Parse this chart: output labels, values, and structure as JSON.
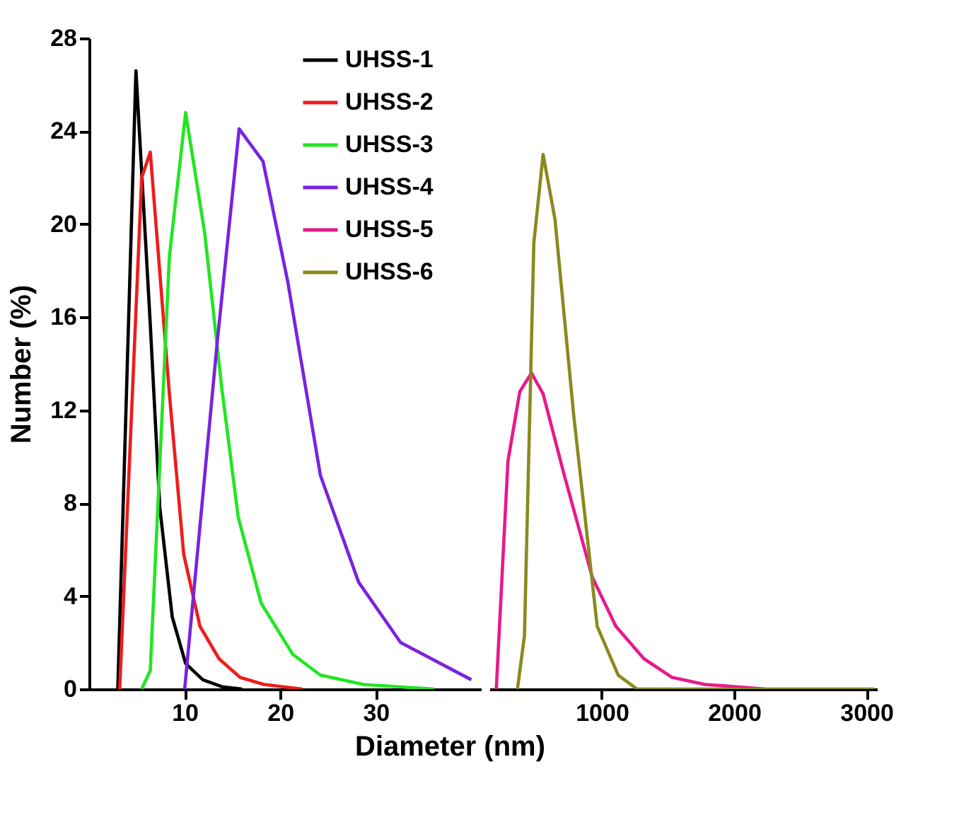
{
  "chart_data": [
    {
      "type": "line",
      "xlabel": "Diameter (nm)",
      "ylabel": "Number (%)",
      "xlim": [
        0,
        41
      ],
      "xticks": [
        10,
        20,
        30
      ],
      "ylim": [
        0,
        28
      ],
      "yticks": [
        0,
        4,
        8,
        12,
        16,
        20,
        24,
        28
      ],
      "grid": false,
      "legend": "top right",
      "marker": "none",
      "line_style": "solid",
      "series": [
        {
          "name": "UHSS-1",
          "color": "#000000",
          "x": [
            3.0,
            4.9,
            6.4,
            7.4,
            8.7,
            10.1,
            11.9,
            13.9,
            16.0
          ],
          "values": [
            0,
            26.6,
            15.7,
            7.8,
            3.1,
            1.1,
            0.4,
            0.1,
            0
          ]
        },
        {
          "name": "UHSS-2",
          "color": "#ee1c1c",
          "x": [
            3.2,
            5.5,
            6.4,
            8.4,
            9.9,
            11.6,
            13.6,
            15.8,
            18.3,
            22.3
          ],
          "values": [
            0,
            22.0,
            23.1,
            12.7,
            5.8,
            2.7,
            1.3,
            0.5,
            0.2,
            0
          ]
        },
        {
          "name": "UHSS-3",
          "color": "#22e622",
          "x": [
            5.5,
            6.4,
            8.4,
            10.1,
            12.1,
            13.9,
            15.6,
            18.0,
            21.3,
            24.2,
            28.7,
            36.1
          ],
          "values": [
            0,
            0.8,
            18.6,
            24.8,
            19.6,
            12.9,
            7.4,
            3.7,
            1.5,
            0.6,
            0.2,
            0
          ]
        },
        {
          "name": "UHSS-4",
          "color": "#7a22e0",
          "x": [
            10.0,
            13.4,
            15.7,
            18.2,
            20.8,
            24.2,
            28.2,
            32.6,
            40.0
          ],
          "values": [
            0,
            14.9,
            24.1,
            22.7,
            17.5,
            9.2,
            4.6,
            2.0,
            0.4
          ]
        }
      ]
    },
    {
      "type": "line",
      "xlim": [
        150,
        3080
      ],
      "xticks": [
        1000,
        2000,
        3000
      ],
      "ylim": [
        0,
        28
      ],
      "tick_labels": "x",
      "grid": false,
      "legend": "top left",
      "marker": "none",
      "line_style": "solid",
      "series": [
        {
          "name": "UHSS-5",
          "color": "#e8198a",
          "x": [
            202,
            290,
            380,
            468,
            556,
            716,
            929,
            1106,
            1319,
            1532,
            1780,
            2241
          ],
          "values": [
            0,
            9.8,
            12.8,
            13.6,
            12.7,
            9.2,
            4.8,
            2.7,
            1.3,
            0.5,
            0.2,
            0
          ]
        },
        {
          "name": "UHSS-6",
          "color": "#8a8a1e",
          "x": [
            362,
            415,
            486,
            556,
            646,
            787,
            965,
            1124,
            1266,
            3060
          ],
          "values": [
            0,
            2.3,
            19.2,
            23.0,
            20.2,
            11.8,
            2.7,
            0.6,
            0,
            0
          ]
        }
      ]
    }
  ]
}
